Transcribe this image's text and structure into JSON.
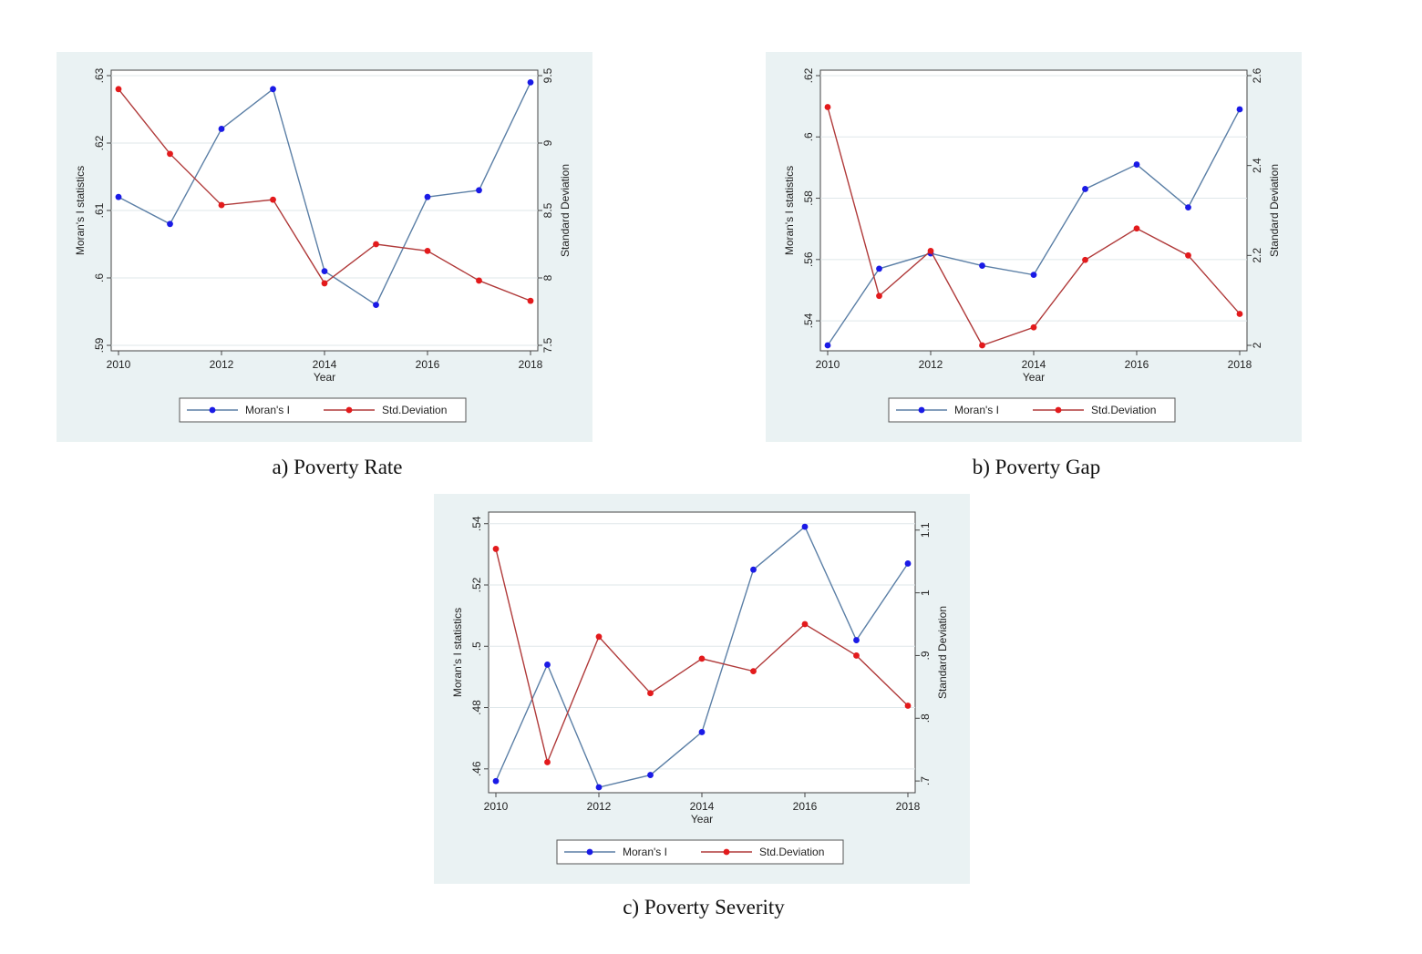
{
  "colors": {
    "panel_bg": "#eaf2f3",
    "moran": "#1a1ae6",
    "moran_line": "#5b7fa6",
    "std": "#e31a1c",
    "std_line": "#b03a3a"
  },
  "chart_data": [
    {
      "type": "line",
      "caption": "a) Poverty Rate",
      "xlabel": "Year",
      "ylabel_left": "Moran's I statistics",
      "ylabel_right": "Standard Deviation",
      "x": [
        2010,
        2011,
        2012,
        2013,
        2014,
        2015,
        2016,
        2017,
        2018
      ],
      "xticks": [
        2010,
        2012,
        2014,
        2016,
        2018
      ],
      "xlim": [
        2010,
        2018
      ],
      "left_lim": [
        0.59,
        0.63
      ],
      "left_ticks": [
        0.59,
        0.6,
        0.61,
        0.62,
        0.63
      ],
      "left_tick_labels": [
        ".59",
        ".6",
        ".61",
        ".62",
        ".63"
      ],
      "right_lim": [
        7.5,
        9.5
      ],
      "right_ticks": [
        7.5,
        8,
        8.5,
        9,
        9.5
      ],
      "right_tick_labels": [
        "7.5",
        "8",
        "8.5",
        "9",
        "9.5"
      ],
      "series": [
        {
          "name": "Moran's I",
          "axis": "left",
          "values": [
            0.612,
            0.608,
            0.6221,
            0.628,
            0.601,
            0.596,
            0.612,
            0.613,
            0.629
          ]
        },
        {
          "name": "Std.Deviation",
          "axis": "right",
          "values": [
            9.4,
            8.92,
            8.54,
            8.58,
            7.96,
            8.25,
            8.2,
            7.98,
            7.83
          ]
        }
      ]
    },
    {
      "type": "line",
      "caption": "b) Poverty Gap",
      "xlabel": "Year",
      "ylabel_left": "Moran's I statistics",
      "ylabel_right": "Standard Deviation",
      "x": [
        2010,
        2011,
        2012,
        2013,
        2014,
        2015,
        2016,
        2017,
        2018
      ],
      "xticks": [
        2010,
        2012,
        2014,
        2016,
        2018
      ],
      "xlim": [
        2010,
        2018
      ],
      "left_lim": [
        0.532,
        0.62
      ],
      "left_ticks": [
        0.54,
        0.56,
        0.58,
        0.6,
        0.62
      ],
      "left_tick_labels": [
        ".54",
        ".56",
        ".58",
        ".6",
        ".62"
      ],
      "right_lim": [
        2.0,
        2.6
      ],
      "right_ticks": [
        2.0,
        2.2,
        2.4,
        2.6
      ],
      "right_tick_labels": [
        "2",
        "2.2",
        "2.4",
        "2.6"
      ],
      "series": [
        {
          "name": "Moran's I",
          "axis": "left",
          "values": [
            0.532,
            0.557,
            0.562,
            0.558,
            0.555,
            0.583,
            0.591,
            0.577,
            0.609
          ]
        },
        {
          "name": "Std.Deviation",
          "axis": "right",
          "values": [
            2.53,
            2.11,
            2.21,
            2.0,
            2.04,
            2.19,
            2.26,
            2.2,
            2.07
          ]
        }
      ]
    },
    {
      "type": "line",
      "caption": "c) Poverty Severity",
      "xlabel": "Year",
      "ylabel_left": "Moran's I statistics",
      "ylabel_right": "Standard Deviation",
      "x": [
        2010,
        2011,
        2012,
        2013,
        2014,
        2015,
        2016,
        2017,
        2018
      ],
      "xticks": [
        2010,
        2012,
        2014,
        2016,
        2018
      ],
      "xlim": [
        2010,
        2018
      ],
      "left_lim": [
        0.454,
        0.542
      ],
      "left_ticks": [
        0.46,
        0.48,
        0.5,
        0.52,
        0.54
      ],
      "left_tick_labels": [
        ".46",
        ".48",
        ".5",
        ".52",
        ".54"
      ],
      "right_lim": [
        0.69,
        1.12
      ],
      "right_ticks": [
        0.7,
        0.8,
        0.9,
        1.0,
        1.1
      ],
      "right_tick_labels": [
        ".7",
        ".8",
        ".9",
        "1",
        "1.1"
      ],
      "series": [
        {
          "name": "Moran's I",
          "axis": "left",
          "values": [
            0.456,
            0.494,
            0.454,
            0.458,
            0.472,
            0.525,
            0.539,
            0.502,
            0.527
          ]
        },
        {
          "name": "Std.Deviation",
          "axis": "right",
          "values": [
            1.07,
            0.73,
            0.93,
            0.84,
            0.895,
            0.875,
            0.95,
            0.9,
            0.82
          ]
        }
      ]
    }
  ]
}
